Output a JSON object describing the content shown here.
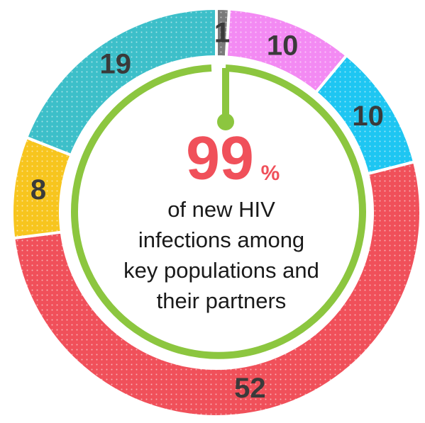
{
  "chart_data": {
    "type": "donut",
    "values": [
      1,
      10,
      10,
      52,
      8,
      19
    ],
    "colors": [
      "#7a7a7a",
      "#f38af3",
      "#1ec6f2",
      "#f0505a",
      "#f7c51e",
      "#3dbfc9"
    ],
    "center_value": "99",
    "center_unit": "%",
    "caption": [
      "of new HIV",
      "infections among",
      "key populations and",
      "their partners"
    ]
  }
}
